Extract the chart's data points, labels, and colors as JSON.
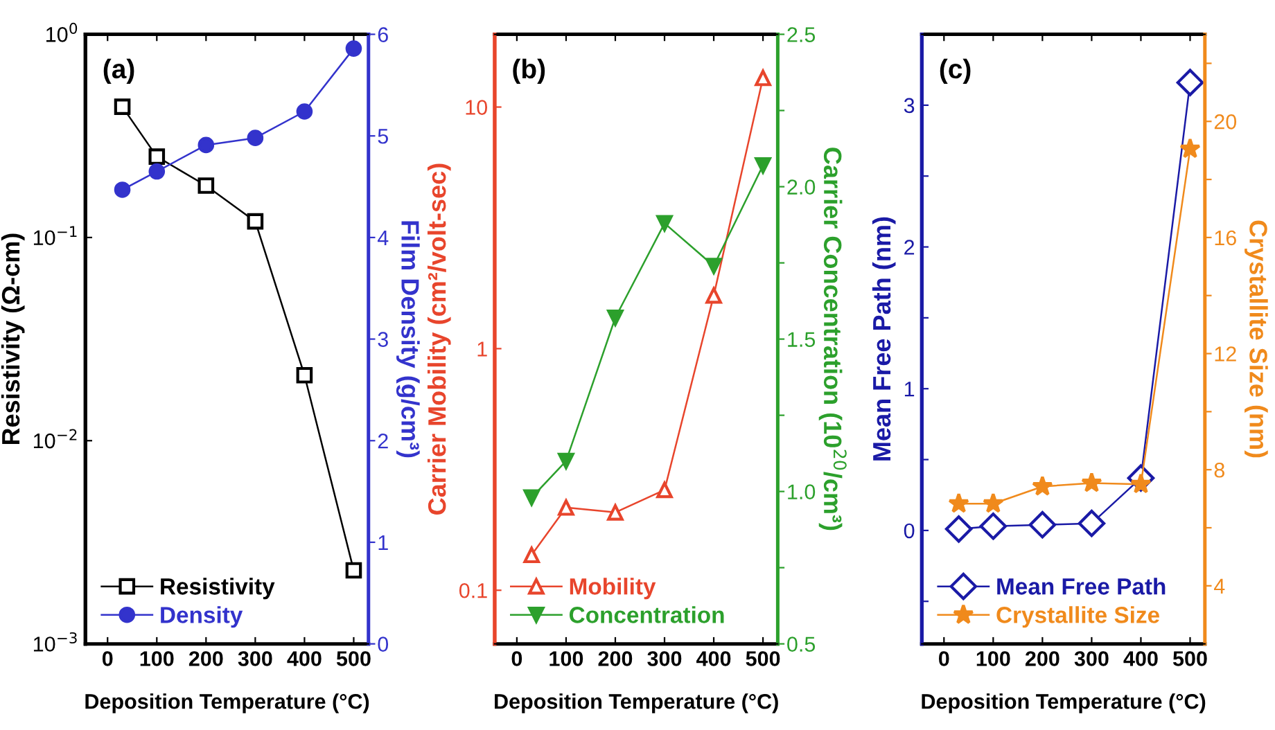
{
  "chart_data": [
    {
      "type": "line",
      "annotations": [
        "(a)"
      ],
      "xlabel": "Deposition Temperature (°C)",
      "ylabel": "Resistivity (Ω-cm)",
      "y2label": "Film Density (g/cm³)",
      "x": [
        30,
        100,
        200,
        300,
        400,
        500
      ],
      "xlim": [
        -45,
        530
      ],
      "xticks": [
        0,
        100,
        200,
        300,
        400,
        500
      ],
      "log": "y",
      "ylim": [
        0.001,
        1
      ],
      "yticks": [
        {
          "value": 0.001,
          "label": "10$^{−3}$"
        },
        {
          "value": 0.01,
          "label": "10$^{−2}$"
        },
        {
          "value": 0.1,
          "label": "10$^{−1}$"
        },
        {
          "value": 1,
          "label": "10$^{0}$"
        }
      ],
      "y2lim": [
        0,
        6
      ],
      "y2ticks": [
        0,
        1,
        2,
        3,
        4,
        5,
        6
      ],
      "legend": "bottom left",
      "grid": false,
      "series": [
        {
          "name": "Resistivity",
          "color": "#000000",
          "marker": "square",
          "values": [
            0.44,
            0.25,
            0.18,
            0.12,
            0.021,
            0.0023
          ]
        },
        {
          "name": "Density",
          "color": "#3333cc",
          "marker": "circle",
          "axis": "y2",
          "values": [
            4.47,
            4.65,
            4.91,
            4.98,
            5.24,
            5.86
          ]
        }
      ]
    },
    {
      "type": "line",
      "annotations": [
        "(b)"
      ],
      "xlabel": "Deposition Temperature (°C)",
      "ylabel": "Carrier Mobility (cm²/volt-sec)",
      "y2label": "Carrier Concentration (10$^{20}$/cm³)",
      "x": [
        30,
        100,
        200,
        300,
        400,
        500
      ],
      "xlim": [
        -45,
        530
      ],
      "xticks": [
        0,
        100,
        200,
        300,
        400,
        500
      ],
      "log": "y",
      "ylim": [
        0.06,
        20
      ],
      "yticks": [
        0.1,
        1,
        10
      ],
      "y2lim": [
        0.5,
        2.5
      ],
      "y2ticks": [
        {
          "value": 0.5,
          "label": "0.5"
        },
        {
          "value": 0.75,
          "label": null
        },
        {
          "value": 1.0,
          "label": "1.0"
        },
        {
          "value": 1.25,
          "label": null
        },
        {
          "value": 1.5,
          "label": "1.5"
        },
        {
          "value": 1.75,
          "label": null
        },
        {
          "value": 2.0,
          "label": "2.0"
        },
        {
          "value": 2.25,
          "label": null
        },
        {
          "value": 2.5,
          "label": "2.5"
        }
      ],
      "legend": "bottom left",
      "grid": false,
      "series": [
        {
          "name": "Mobility",
          "color": "#e8452c",
          "marker": "triangle",
          "values": [
            0.14,
            0.22,
            0.21,
            0.26,
            1.66,
            13.2
          ]
        },
        {
          "name": "Concentration",
          "color": "#2ca02c",
          "marker": "triangle_down",
          "axis": "y2",
          "values": [
            0.98,
            1.1,
            1.57,
            1.88,
            1.74,
            2.07
          ]
        }
      ]
    },
    {
      "type": "line",
      "annotations": [
        "(c)"
      ],
      "xlabel": "Deposition Temperature (°C)",
      "ylabel": "Mean Free Path (nm)",
      "y2label": "Crystallite Size (nm)",
      "x": [
        30,
        100,
        200,
        300,
        400,
        500
      ],
      "xlim": [
        -45,
        530
      ],
      "xticks": [
        0,
        100,
        200,
        300,
        400,
        500
      ],
      "ylim": [
        -0.8,
        3.5
      ],
      "yticks": [
        {
          "value": -0.5,
          "label": null
        },
        0,
        {
          "value": 0.5,
          "label": null
        },
        1,
        {
          "value": 1.5,
          "label": null
        },
        2,
        {
          "value": 2.5,
          "label": null
        },
        3
      ],
      "y2lim": [
        2,
        23
      ],
      "y2ticks": [
        4,
        {
          "value": 6,
          "label": null
        },
        8,
        {
          "value": 10,
          "label": null
        },
        12,
        {
          "value": 14,
          "label": null
        },
        16,
        {
          "value": 18,
          "label": null
        },
        20,
        {
          "value": 22,
          "label": null
        }
      ],
      "legend": "bottom left",
      "grid": false,
      "series": [
        {
          "name": "Mean Free Path",
          "color": "#1a1aa6",
          "marker": "diamond",
          "values": [
            0.01,
            0.03,
            0.04,
            0.05,
            0.37,
            3.16
          ]
        },
        {
          "name": "Crystallite Size",
          "color": "#f08a1c",
          "marker": "star",
          "axis": "y2",
          "values": [
            6.83,
            6.83,
            7.42,
            7.54,
            7.5,
            19.05
          ]
        }
      ]
    }
  ]
}
